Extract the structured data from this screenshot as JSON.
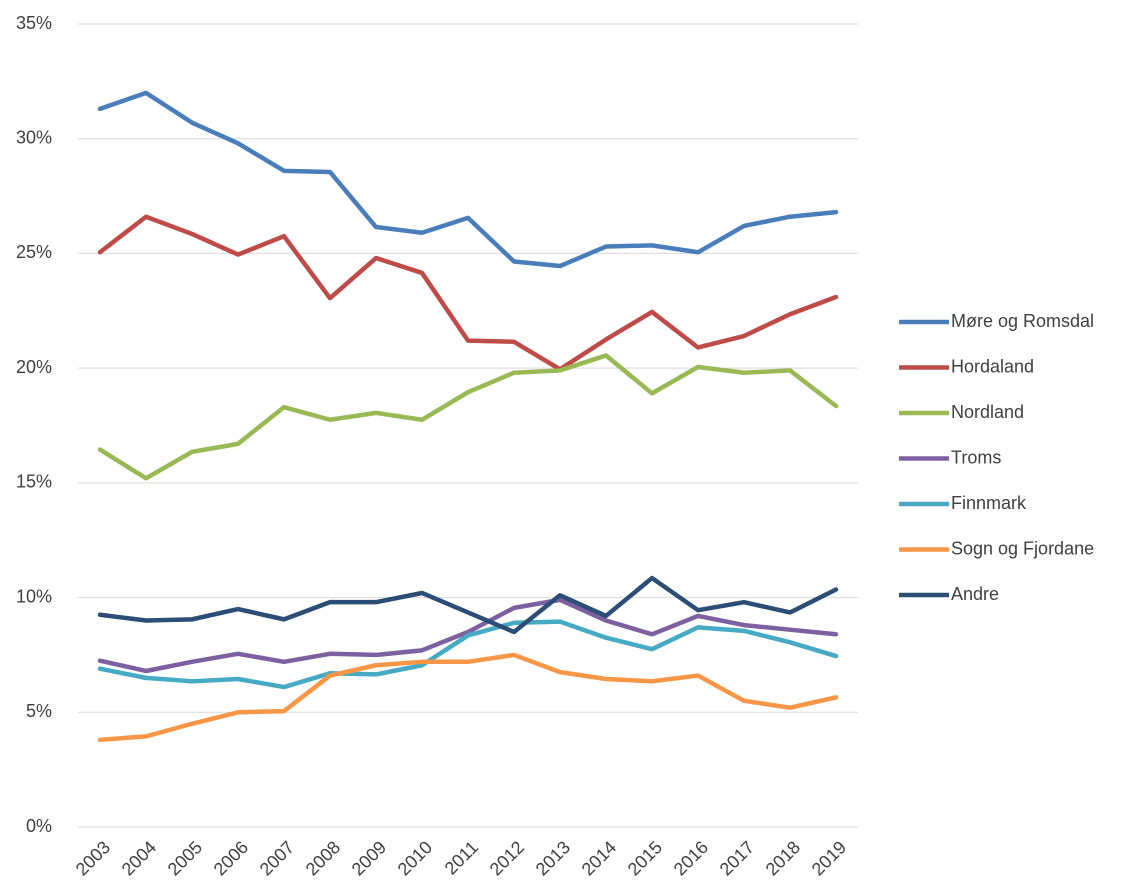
{
  "chart_data": {
    "type": "line",
    "categories": [
      "2003",
      "2004",
      "2005",
      "2006",
      "2007",
      "2008",
      "2009",
      "2010",
      "2011",
      "2012",
      "2013",
      "2014",
      "2015",
      "2016",
      "2017",
      "2018",
      "2019"
    ],
    "ylim": [
      0,
      35
    ],
    "yticks": [
      {
        "value": 0,
        "label": "0%"
      },
      {
        "value": 5,
        "label": "5%"
      },
      {
        "value": 10,
        "label": "10%"
      },
      {
        "value": 15,
        "label": "15%"
      },
      {
        "value": 20,
        "label": "20%"
      },
      {
        "value": 25,
        "label": "25%"
      },
      {
        "value": 30,
        "label": "30%"
      },
      {
        "value": 35,
        "label": "35%"
      }
    ],
    "grid": true,
    "legend": "right",
    "series": [
      {
        "name": "Møre og Romsdal",
        "color": "#4a7ebb",
        "values": [
          31.3,
          32.0,
          30.7,
          29.8,
          28.6,
          28.55,
          26.15,
          25.9,
          26.55,
          24.65,
          24.45,
          25.3,
          25.35,
          25.05,
          26.2,
          26.6,
          26.8
        ]
      },
      {
        "name": "Hordaland",
        "color": "#be4b48",
        "values": [
          25.05,
          26.6,
          25.85,
          24.95,
          25.75,
          23.05,
          24.8,
          24.15,
          21.2,
          21.15,
          19.95,
          21.25,
          22.45,
          20.9,
          21.4,
          22.35,
          23.1
        ]
      },
      {
        "name": "Nordland",
        "color": "#98b954",
        "values": [
          16.45,
          15.2,
          16.35,
          16.7,
          18.3,
          17.75,
          18.05,
          17.75,
          18.95,
          19.8,
          19.9,
          20.55,
          18.9,
          20.05,
          19.8,
          19.9,
          18.35
        ]
      },
      {
        "name": "Troms",
        "color": "#7d60a0",
        "values": [
          7.25,
          6.8,
          7.2,
          7.55,
          7.2,
          7.55,
          7.5,
          7.7,
          8.5,
          9.55,
          9.9,
          9.0,
          8.4,
          9.2,
          8.8,
          8.6,
          8.4
        ]
      },
      {
        "name": "Finnmark",
        "color": "#46aac5",
        "values": [
          6.9,
          6.5,
          6.35,
          6.45,
          6.1,
          6.7,
          6.65,
          7.05,
          8.35,
          8.9,
          8.95,
          8.25,
          7.75,
          8.7,
          8.55,
          8.05,
          7.45
        ]
      },
      {
        "name": "Sogn og Fjordane",
        "color": "#f79646",
        "values": [
          3.8,
          3.95,
          4.5,
          5.0,
          5.05,
          6.6,
          7.05,
          7.2,
          7.2,
          7.5,
          6.75,
          6.45,
          6.35,
          6.6,
          5.5,
          5.2,
          5.65
        ]
      },
      {
        "name": "Andre",
        "color": "#2c4d75",
        "values": [
          9.25,
          9.0,
          9.05,
          9.5,
          9.05,
          9.8,
          9.8,
          10.2,
          9.35,
          8.5,
          10.1,
          9.2,
          10.85,
          9.45,
          9.8,
          9.35,
          10.35
        ]
      }
    ]
  }
}
